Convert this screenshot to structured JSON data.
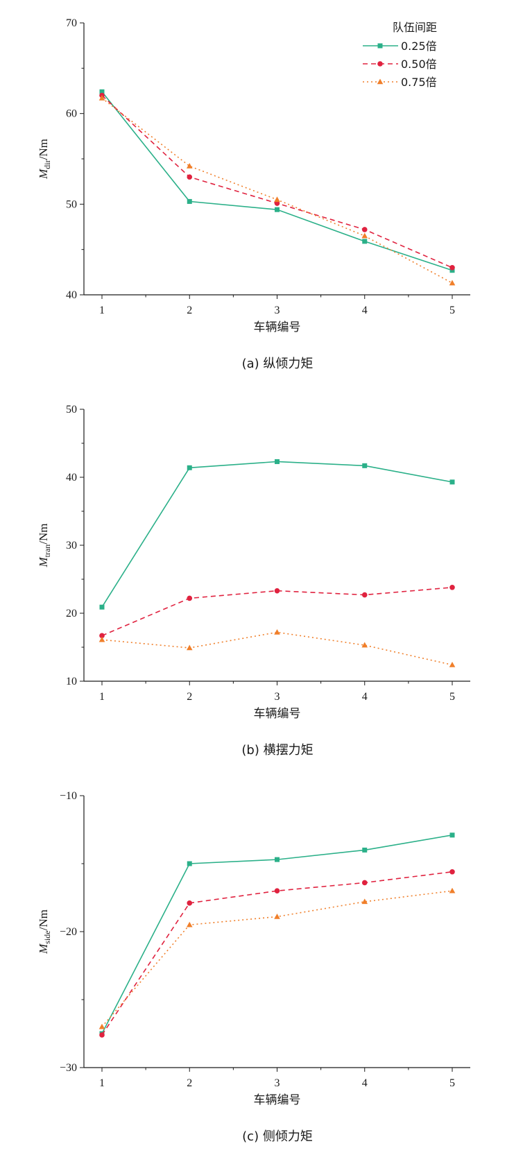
{
  "legend": {
    "title": "队伍间距",
    "entries": [
      "0.25倍",
      "0.50倍",
      "0.75倍"
    ]
  },
  "series_styles": [
    {
      "color": "#2bb089",
      "dash": "",
      "marker": "square"
    },
    {
      "color": "#e0223f",
      "dash": "7,5",
      "marker": "circle"
    },
    {
      "color": "#f07f2a",
      "dash": "2,4",
      "marker": "triangle"
    }
  ],
  "chart_data": [
    {
      "type": "line",
      "caption": "(a)  纵倾力矩",
      "xlabel": "车辆编号",
      "ylabel": {
        "main": "M",
        "sub": "dir",
        "unit": "/Nm"
      },
      "x": [
        1,
        2,
        3,
        4,
        5
      ],
      "ylim": [
        40,
        70
      ],
      "yticks": [
        40,
        50,
        60,
        70
      ],
      "legend_shown": true,
      "series": [
        {
          "name": "0.25倍",
          "values": [
            62.4,
            50.3,
            49.4,
            45.9,
            42.7
          ]
        },
        {
          "name": "0.50倍",
          "values": [
            62.0,
            53.0,
            50.1,
            47.2,
            43.0
          ]
        },
        {
          "name": "0.75倍",
          "values": [
            61.7,
            54.2,
            50.5,
            46.5,
            41.3
          ]
        }
      ]
    },
    {
      "type": "line",
      "caption": "(b)  横摆力矩",
      "xlabel": "车辆编号",
      "ylabel": {
        "main": "M",
        "sub": "tran",
        "unit": "/Nm"
      },
      "x": [
        1,
        2,
        3,
        4,
        5
      ],
      "ylim": [
        10,
        50
      ],
      "yticks": [
        10,
        20,
        30,
        40,
        50
      ],
      "legend_shown": false,
      "series": [
        {
          "name": "0.25倍",
          "values": [
            20.9,
            41.4,
            42.3,
            41.7,
            39.3
          ]
        },
        {
          "name": "0.50倍",
          "values": [
            16.7,
            22.2,
            23.3,
            22.7,
            23.8
          ]
        },
        {
          "name": "0.75倍",
          "values": [
            16.1,
            14.9,
            17.2,
            15.3,
            12.4
          ]
        }
      ]
    },
    {
      "type": "line",
      "caption": "(c)  侧倾力矩",
      "xlabel": "车辆编号",
      "ylabel": {
        "main": "M",
        "sub": "side",
        "unit": "/Nm"
      },
      "x": [
        1,
        2,
        3,
        4,
        5
      ],
      "ylim": [
        -30,
        -10
      ],
      "yticks": [
        -30,
        -20,
        -10
      ],
      "legend_shown": false,
      "series": [
        {
          "name": "0.25倍",
          "values": [
            -27.5,
            -15.0,
            -14.7,
            -14.0,
            -12.9
          ]
        },
        {
          "name": "0.50倍",
          "values": [
            -27.6,
            -17.9,
            -17.0,
            -16.4,
            -15.6
          ]
        },
        {
          "name": "0.75倍",
          "values": [
            -27.0,
            -19.5,
            -18.9,
            -17.8,
            -17.0
          ]
        }
      ]
    }
  ]
}
